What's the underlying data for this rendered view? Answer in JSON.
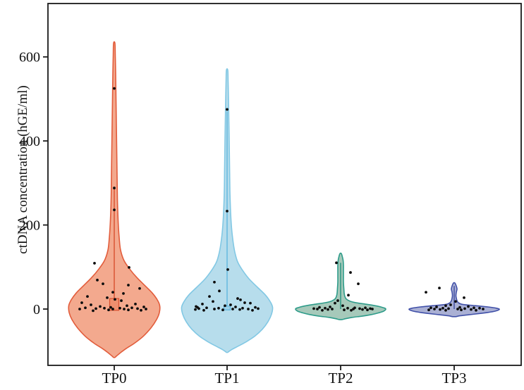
{
  "chart_data": {
    "type": "violin",
    "title": "",
    "xlabel": "",
    "ylabel": "ctDNA concentration (hGE/ml)",
    "categories": [
      "TP0",
      "TP1",
      "TP2",
      "TP3"
    ],
    "yticks": [
      0,
      200,
      400,
      600
    ],
    "ylim": [
      -134,
      727
    ],
    "grid": false,
    "legend": "none",
    "axis_color": "#1a1a1a",
    "text_color": "#111111",
    "point_color": "#0d0d0d",
    "layout": {
      "plot_left": 68,
      "plot_top": 5,
      "plot_right": 739,
      "plot_bottom": 519,
      "centers": [
        162,
        322,
        483,
        644
      ],
      "tick_len": 7,
      "point_radius": 1.9,
      "ytick_font": 20,
      "xtick_font": 21
    },
    "series": [
      {
        "name": "TP0",
        "fill": "#F3A98E",
        "stroke": "#E25C3B",
        "center": 162,
        "profile": [
          [
            632,
            1
          ],
          [
            600,
            1.5
          ],
          [
            560,
            2
          ],
          [
            500,
            2.5
          ],
          [
            440,
            3
          ],
          [
            380,
            3.5
          ],
          [
            320,
            4
          ],
          [
            260,
            4.5
          ],
          [
            210,
            5.5
          ],
          [
            170,
            7
          ],
          [
            140,
            9
          ],
          [
            115,
            14
          ],
          [
            95,
            22
          ],
          [
            75,
            32
          ],
          [
            55,
            44
          ],
          [
            38,
            54
          ],
          [
            22,
            61
          ],
          [
            8,
            64.5
          ],
          [
            -8,
            64
          ],
          [
            -25,
            60
          ],
          [
            -45,
            52
          ],
          [
            -65,
            41
          ],
          [
            -82,
            28
          ],
          [
            -95,
            16
          ],
          [
            -105,
            8
          ],
          [
            -112,
            3
          ],
          [
            -115,
            1
          ]
        ],
        "box": {
          "q1": -3,
          "q3": 25,
          "width": 13,
          "fill": "#EE8F6E",
          "stroke": "#D8502F"
        },
        "whisker": {
          "lo": 25,
          "hi": 290,
          "color": "#D8502F",
          "width": 1.4
        },
        "points": [
          [
            525,
            0
          ],
          [
            288,
            0
          ],
          [
            236,
            0
          ],
          [
            109,
            -28
          ],
          [
            99,
            21
          ],
          [
            69,
            -24
          ],
          [
            60,
            -16
          ],
          [
            57,
            20
          ],
          [
            49,
            36
          ],
          [
            40,
            -2
          ],
          [
            37,
            13
          ],
          [
            30,
            -38
          ],
          [
            27,
            -10
          ],
          [
            23,
            1
          ],
          [
            20,
            10
          ],
          [
            15,
            -46
          ],
          [
            12,
            30
          ],
          [
            10,
            -33
          ],
          [
            8,
            18
          ],
          [
            6,
            -20
          ],
          [
            5,
            42
          ],
          [
            4,
            -5
          ],
          [
            3,
            25
          ],
          [
            3,
            -41
          ],
          [
            2,
            8
          ],
          [
            2,
            -14
          ],
          [
            1,
            33
          ],
          [
            1,
            -26
          ],
          [
            0,
            -2
          ],
          [
            0,
            14
          ],
          [
            0,
            -49
          ],
          [
            0,
            45
          ],
          [
            -2,
            -8
          ],
          [
            -2,
            20
          ],
          [
            -3,
            38
          ],
          [
            -4,
            -30
          ]
        ]
      },
      {
        "name": "TP1",
        "fill": "#B7DDEC",
        "stroke": "#82C8E4",
        "center": 322,
        "profile": [
          [
            568,
            1
          ],
          [
            540,
            1.5
          ],
          [
            500,
            2
          ],
          [
            450,
            2.5
          ],
          [
            400,
            3
          ],
          [
            340,
            3.5
          ],
          [
            280,
            4
          ],
          [
            230,
            5
          ],
          [
            190,
            6.5
          ],
          [
            160,
            8.5
          ],
          [
            135,
            11
          ],
          [
            112,
            15
          ],
          [
            92,
            22
          ],
          [
            72,
            31
          ],
          [
            52,
            43
          ],
          [
            34,
            54
          ],
          [
            18,
            61
          ],
          [
            4,
            64.5
          ],
          [
            -12,
            63
          ],
          [
            -30,
            58
          ],
          [
            -48,
            50
          ],
          [
            -65,
            39
          ],
          [
            -79,
            26
          ],
          [
            -89,
            15
          ],
          [
            -96,
            7
          ],
          [
            -101,
            2.5
          ],
          [
            -103,
            1
          ]
        ],
        "box": {
          "q1": -2,
          "q3": 7,
          "width": 9,
          "fill": "#9ED2E8",
          "stroke": "#5FB6DE"
        },
        "whisker": {
          "lo": 0,
          "hi": 470,
          "color": "#5FB6DE",
          "width": 1.4
        },
        "points": [
          [
            475,
            0
          ],
          [
            233,
            0
          ],
          [
            94,
            1
          ],
          [
            64,
            -18
          ],
          [
            43,
            -11
          ],
          [
            30,
            -25
          ],
          [
            25,
            15
          ],
          [
            22,
            19
          ],
          [
            18,
            -20
          ],
          [
            15,
            25
          ],
          [
            14,
            33
          ],
          [
            12,
            -35
          ],
          [
            10,
            5
          ],
          [
            8,
            -3
          ],
          [
            6,
            -44
          ],
          [
            5,
            12
          ],
          [
            4,
            -42
          ],
          [
            4,
            40
          ],
          [
            3,
            -29
          ],
          [
            2,
            22
          ],
          [
            2,
            -12
          ],
          [
            1,
            44
          ],
          [
            1,
            -40
          ],
          [
            0,
            8
          ],
          [
            0,
            -18
          ],
          [
            0,
            30
          ],
          [
            -1,
            -45
          ],
          [
            -1,
            18
          ],
          [
            -2,
            -6
          ],
          [
            -3,
            36
          ],
          [
            -3,
            -33
          ]
        ]
      },
      {
        "name": "TP2",
        "fill": "#A6C9BA",
        "stroke": "#2E9C8A",
        "center": 483,
        "profile": [
          [
            132,
            1
          ],
          [
            124,
            2.5
          ],
          [
            116,
            3.5
          ],
          [
            105,
            4
          ],
          [
            92,
            4
          ],
          [
            78,
            4
          ],
          [
            64,
            4
          ],
          [
            50,
            4.5
          ],
          [
            38,
            5
          ],
          [
            30,
            6
          ],
          [
            24,
            8
          ],
          [
            19,
            13
          ],
          [
            15,
            22
          ],
          [
            11,
            38
          ],
          [
            7,
            52
          ],
          [
            3,
            61
          ],
          [
            0,
            64
          ],
          [
            -5,
            61
          ],
          [
            -9,
            54
          ],
          [
            -13,
            44
          ],
          [
            -17,
            30
          ],
          [
            -20,
            16
          ],
          [
            -23,
            7
          ],
          [
            -25,
            2
          ]
        ],
        "box": null,
        "whisker": {
          "lo": 0,
          "hi": 110,
          "color": "#23917E",
          "width": 1.4
        },
        "points": [
          [
            110,
            -6
          ],
          [
            87,
            14
          ],
          [
            60,
            25
          ],
          [
            33,
            11
          ],
          [
            20,
            -4
          ],
          [
            14,
            -8
          ],
          [
            8,
            3
          ],
          [
            5,
            -15
          ],
          [
            4,
            -30
          ],
          [
            3,
            20
          ],
          [
            3,
            35
          ],
          [
            2,
            -22
          ],
          [
            2,
            10
          ],
          [
            1,
            42
          ],
          [
            1,
            -38
          ],
          [
            1,
            27
          ],
          [
            0,
            -12
          ],
          [
            0,
            18
          ],
          [
            0,
            -33
          ],
          [
            0,
            45
          ],
          [
            -1,
            31
          ],
          [
            -1,
            -18
          ],
          [
            -2,
            5
          ],
          [
            -2,
            38
          ],
          [
            -3,
            -26
          ],
          [
            -3,
            15
          ]
        ]
      },
      {
        "name": "TP3",
        "fill": "#AAB0D4",
        "stroke": "#4050A8",
        "center": 644,
        "profile": [
          [
            62,
            1
          ],
          [
            57,
            2.5
          ],
          [
            52,
            3.5
          ],
          [
            47,
            4
          ],
          [
            40,
            3
          ],
          [
            32,
            2.5
          ],
          [
            26,
            3
          ],
          [
            20,
            4
          ],
          [
            15,
            6
          ],
          [
            11,
            12
          ],
          [
            8,
            30
          ],
          [
            5,
            48
          ],
          [
            2,
            60
          ],
          [
            -1,
            64
          ],
          [
            -5,
            58
          ],
          [
            -8,
            48
          ],
          [
            -11,
            34
          ],
          [
            -14,
            18
          ],
          [
            -16,
            8
          ],
          [
            -18,
            2
          ]
        ],
        "box": null,
        "whisker": {
          "lo": 0,
          "hi": 55,
          "color": "#3A49A0",
          "width": 1.4
        },
        "points": [
          [
            50,
            -21
          ],
          [
            40,
            -40
          ],
          [
            27,
            14
          ],
          [
            18,
            2
          ],
          [
            10,
            -5
          ],
          [
            8,
            -12
          ],
          [
            6,
            20
          ],
          [
            5,
            -25
          ],
          [
            4,
            8
          ],
          [
            3,
            -33
          ],
          [
            3,
            28
          ],
          [
            2,
            -16
          ],
          [
            2,
            36
          ],
          [
            1,
            -8
          ],
          [
            1,
            15
          ],
          [
            0,
            -28
          ],
          [
            0,
            5
          ],
          [
            0,
            41
          ],
          [
            -1,
            -20
          ],
          [
            -1,
            24
          ],
          [
            -2,
            -36
          ],
          [
            -2,
            10
          ],
          [
            -3,
            31
          ],
          [
            -3,
            -12
          ]
        ]
      }
    ]
  }
}
